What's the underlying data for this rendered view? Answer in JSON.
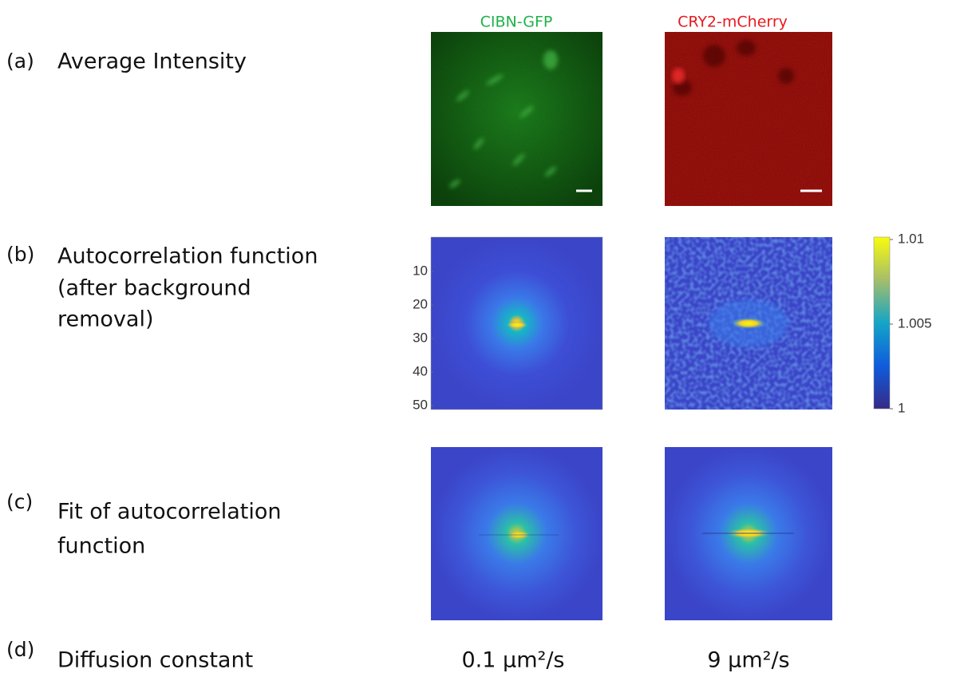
{
  "columns": [
    "CIBN-GFP",
    "CRY2-mCherry"
  ],
  "rows": [
    {
      "marker": "(a)",
      "label": [
        "Average Intensity"
      ]
    },
    {
      "marker": "(b)",
      "label": [
        "Autocorrelation function",
        "(after background",
        "removal)"
      ]
    },
    {
      "marker": "(c)",
      "label": [
        "Fit of autocorrelation",
        "function"
      ]
    },
    {
      "marker": "(d)",
      "label": [
        "Diffusion constant"
      ],
      "values": [
        "0.1 µm²/s",
        "9 µm²/s"
      ]
    }
  ],
  "y_axis": {
    "ticks": [
      10,
      20,
      30,
      40,
      50
    ]
  },
  "colorbar": {
    "ticks": [
      1.01,
      1.005,
      1
    ]
  }
}
